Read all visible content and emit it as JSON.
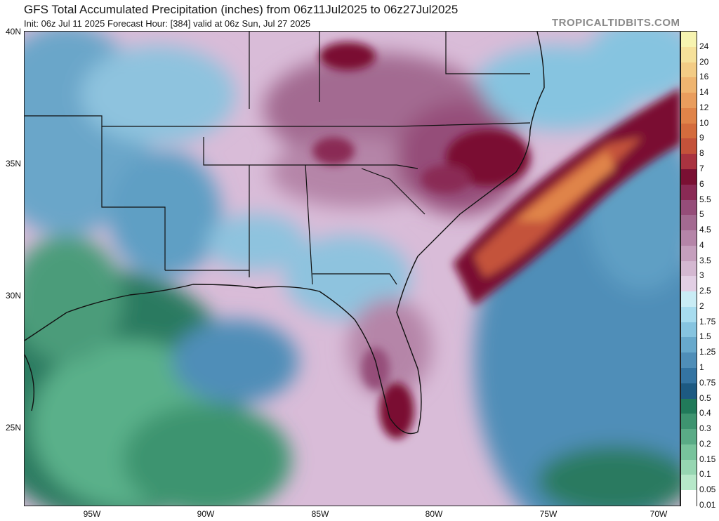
{
  "header": {
    "title": "GFS Total Accumulated Precipitation (inches) from 06z11Jul2025 to 06z27Jul2025",
    "subtitle": "Init: 06z Jul 11 2025   Forecast Hour: [384]   valid at 06z Sun, Jul 27 2025",
    "brand": "TROPICALTIDBITS.COM"
  },
  "axes": {
    "lat_labels": [
      "40N",
      "35N",
      "30N",
      "25N"
    ],
    "lon_labels": [
      "95W",
      "90W",
      "85W",
      "80W",
      "75W",
      "70W"
    ]
  },
  "colorbar": {
    "levels": [
      "24",
      "20",
      "16",
      "14",
      "12",
      "10",
      "9",
      "8",
      "7",
      "6",
      "5.5",
      "5",
      "4.5",
      "4",
      "3.5",
      "3",
      "2.5",
      "2",
      "1.75",
      "1.5",
      "1.25",
      "1",
      "0.75",
      "0.5",
      "0.4",
      "0.3",
      "0.2",
      "0.15",
      "0.1",
      "0.05",
      "0.01"
    ],
    "colors": [
      "#f7f4b0",
      "#f6e19a",
      "#f3cc85",
      "#efb570",
      "#e99d5d",
      "#e08449",
      "#d46c3d",
      "#c4523a",
      "#a93340",
      "#7a1033",
      "#8a2a55",
      "#954d79",
      "#a36a91",
      "#b585a8",
      "#c59fbd",
      "#d4b8d1",
      "#e2cfe4",
      "#c9ecf5",
      "#a7dcef",
      "#86c4e0",
      "#68a9cc",
      "#4f8eb8",
      "#3474a2",
      "#1d5a82",
      "#217a5a",
      "#3e9470",
      "#5aab86",
      "#78c39c",
      "#97d6b2",
      "#b7e8c9",
      "#ffffff"
    ]
  }
}
